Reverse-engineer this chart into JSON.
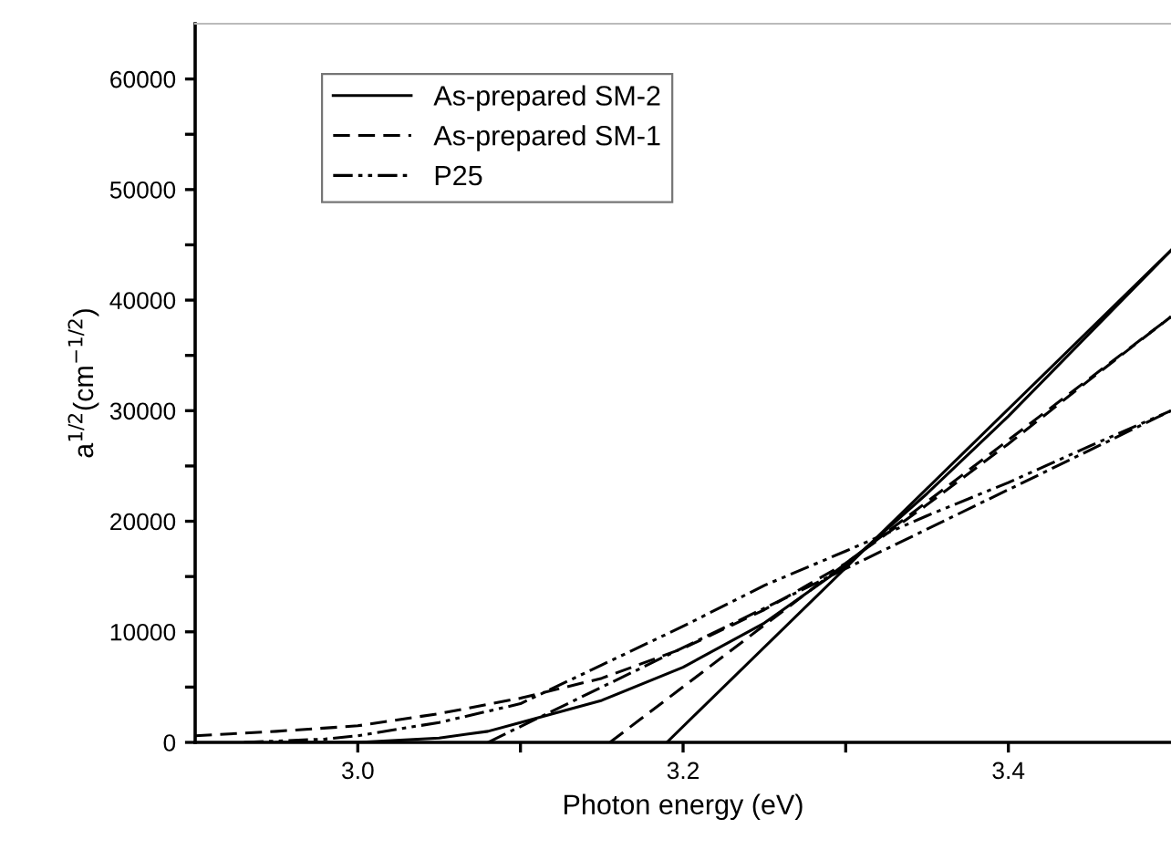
{
  "chart_data": {
    "type": "line",
    "xlabel": "Photon energy (eV)",
    "ylabel": "a$^{1/2}$(cm$^{−1/2}$)",
    "xlim": [
      2.9,
      3.5
    ],
    "ylim": [
      0,
      65000
    ],
    "xticks": [
      {
        "value": 3.0,
        "label": "3.0"
      },
      {
        "value": 3.1,
        "label": null
      },
      {
        "value": 3.2,
        "label": "3.2"
      },
      {
        "value": 3.3,
        "label": null
      },
      {
        "value": 3.4,
        "label": "3.4"
      }
    ],
    "yticks": [
      0,
      {
        "value": 5000,
        "label": null
      },
      10000,
      {
        "value": 15000,
        "label": null
      },
      20000,
      {
        "value": 25000,
        "label": null
      },
      30000,
      {
        "value": 35000,
        "label": null
      },
      40000,
      {
        "value": 45000,
        "label": null
      },
      50000,
      {
        "value": 55000,
        "label": null
      },
      60000
    ],
    "grid": false,
    "legend": "top left",
    "marker": "none",
    "series": [
      {
        "name": "As-prepared SM-2",
        "color": "#000000",
        "line_style": "solid",
        "x": [
          2.95,
          3.0,
          3.05,
          3.08,
          3.1,
          3.15,
          3.2,
          3.25,
          3.3,
          3.35,
          3.4,
          3.45,
          3.5
        ],
        "values": [
          0,
          0,
          400,
          1000,
          1800,
          3800,
          6800,
          10800,
          16000,
          22500,
          29500,
          37000,
          44500
        ]
      },
      {
        "name": "As-prepared SM-1",
        "color": "#000000",
        "line_style": "dashed",
        "x": [
          2.9,
          2.95,
          3.0,
          3.05,
          3.1,
          3.15,
          3.2,
          3.25,
          3.3,
          3.35,
          3.4,
          3.45,
          3.5
        ],
        "values": [
          600,
          1000,
          1500,
          2600,
          4000,
          5800,
          8500,
          12000,
          16200,
          21500,
          27000,
          32800,
          38500
        ]
      },
      {
        "name": "P25",
        "color": "#000000",
        "line_style": "dashdotdot",
        "x": [
          2.93,
          2.98,
          3.0,
          3.05,
          3.1,
          3.15,
          3.2,
          3.25,
          3.3,
          3.35,
          3.4,
          3.45,
          3.5
        ],
        "values": [
          0,
          300,
          600,
          1800,
          3500,
          7000,
          10500,
          14200,
          17300,
          20500,
          23500,
          26800,
          30000
        ]
      },
      {
        "color": "#000000",
        "line_style": "solid",
        "x": [
          3.19,
          3.5
        ],
        "values": [
          0,
          44500
        ]
      },
      {
        "color": "#000000",
        "line_style": "dashed",
        "x": [
          3.155,
          3.5
        ],
        "values": [
          0,
          38500
        ]
      },
      {
        "color": "#000000",
        "line_style": "dashdot",
        "x": [
          3.08,
          3.5
        ],
        "values": [
          0,
          30000
        ]
      }
    ]
  }
}
